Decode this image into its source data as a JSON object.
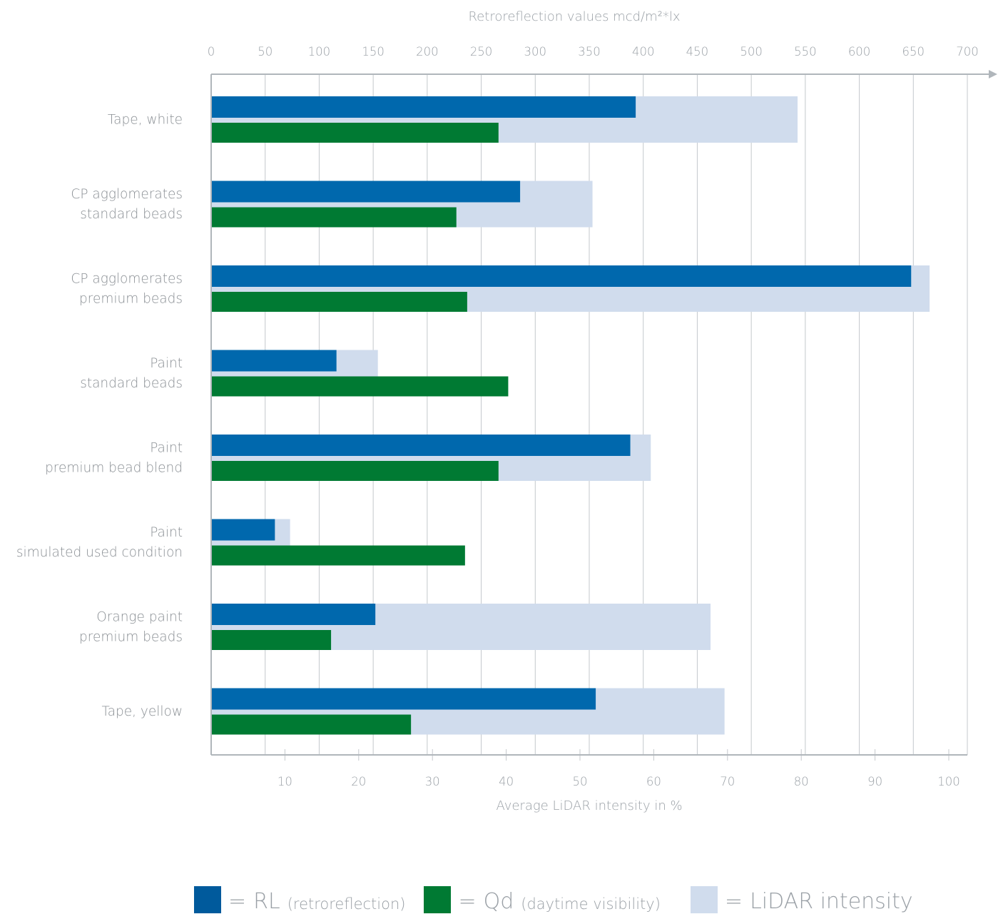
{
  "chart_data": {
    "type": "bar",
    "orientation": "horizontal",
    "title": "",
    "top_axis": {
      "label": "Retroreflection values mcd/m²*lx",
      "range": [
        0,
        700
      ],
      "ticks": [
        0,
        50,
        100,
        150,
        200,
        250,
        300,
        350,
        400,
        450,
        500,
        550,
        600,
        650,
        700
      ]
    },
    "bottom_axis": {
      "label": "Average LiDAR intensity in %",
      "range": [
        0,
        100
      ],
      "ticks": [
        10,
        20,
        30,
        40,
        50,
        60,
        70,
        80,
        90,
        100
      ]
    },
    "grid": true,
    "categories": [
      [
        "Tape, white"
      ],
      [
        "CP agglomerates",
        "standard beads"
      ],
      [
        "CP agglomerates",
        "premium beads"
      ],
      [
        "Paint",
        "standard beads"
      ],
      [
        "Paint",
        "premium bead blend"
      ],
      [
        "Paint",
        "simulated used condition"
      ],
      [
        "Orange paint",
        "premium beads"
      ],
      [
        "Tape, yellow"
      ]
    ],
    "series": [
      {
        "name": "RL",
        "axis": "top",
        "color": "#0068ad",
        "values": [
          393,
          286,
          648,
          116,
          388,
          59,
          152,
          356
        ]
      },
      {
        "name": "Qd",
        "axis": "top",
        "color": "#007a33",
        "values": [
          266,
          227,
          237,
          275,
          266,
          235,
          111,
          185
        ]
      },
      {
        "name": "LiDAR intensity",
        "axis": "bottom",
        "color": "#d0dced",
        "values": [
          79.5,
          51.7,
          97.4,
          22.6,
          59.6,
          10.7,
          67.7,
          69.6
        ]
      }
    ],
    "legend_position": "bottom"
  },
  "legend": {
    "eq": "=",
    "items": [
      {
        "main": "RL",
        "sub": "(retroreflection)",
        "color": "#005a9c"
      },
      {
        "main": "Qd",
        "sub": "(daytime visibility)",
        "color": "#007a33"
      },
      {
        "main": "LiDAR intensity",
        "sub": "",
        "color": "#d0dced"
      }
    ]
  }
}
